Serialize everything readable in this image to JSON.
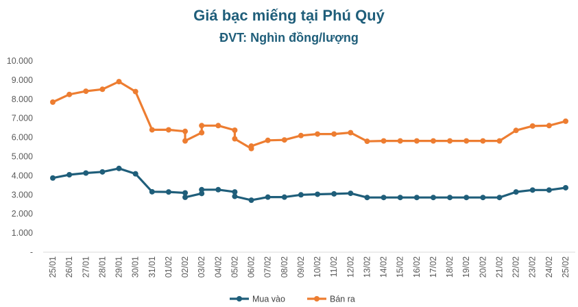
{
  "chart_data": {
    "type": "line",
    "title": "Giá bạc miếng tại Phú Quý",
    "subtitle": "ĐVT: Nghìn đồng/lượng",
    "x_labels": [
      "25/01",
      "26/01",
      "27/01",
      "28/01",
      "29/01",
      "30/01",
      "31/01",
      "01/02",
      "02/02",
      "03/02",
      "04/02",
      "05/02",
      "06/02",
      "07/02",
      "08/02",
      "09/02",
      "10/02",
      "11/02",
      "12/02",
      "13/02",
      "14/02",
      "15/02",
      "16/02",
      "17/02",
      "18/02",
      "19/02",
      "20/02",
      "21/02",
      "22/02",
      "23/02",
      "24/02",
      "25/02"
    ],
    "y_ticks": [
      "-",
      "1.000",
      "2.000",
      "3.000",
      "4.000",
      "5.000",
      "6.000",
      "7.000",
      "8.000",
      "9.000",
      "10.000"
    ],
    "ylim": [
      0,
      10000
    ],
    "series": [
      {
        "name": "Mua vào",
        "color": "#1f5e7a",
        "points": [
          {
            "x": "25/01",
            "y": 3880
          },
          {
            "x": "26/01",
            "y": 4050
          },
          {
            "x": "27/01",
            "y": 4140
          },
          {
            "x": "28/01",
            "y": 4200
          },
          {
            "x": "29/01",
            "y": 4380
          },
          {
            "x": "30/01",
            "y": 4100
          },
          {
            "x": "31/01",
            "y": 3160
          },
          {
            "x": "01/02",
            "y": 3150
          },
          {
            "x": "02/02",
            "y": 3100
          },
          {
            "x": "02/02",
            "y": 2870
          },
          {
            "x": "03/02",
            "y": 3070
          },
          {
            "x": "03/02",
            "y": 3270
          },
          {
            "x": "04/02",
            "y": 3270
          },
          {
            "x": "05/02",
            "y": 3150
          },
          {
            "x": "05/02",
            "y": 2920
          },
          {
            "x": "06/02",
            "y": 2720
          },
          {
            "x": "07/02",
            "y": 2880
          },
          {
            "x": "08/02",
            "y": 2880
          },
          {
            "x": "09/02",
            "y": 3000
          },
          {
            "x": "10/02",
            "y": 3030
          },
          {
            "x": "11/02",
            "y": 3050
          },
          {
            "x": "12/02",
            "y": 3080
          },
          {
            "x": "13/02",
            "y": 2860
          },
          {
            "x": "14/02",
            "y": 2860
          },
          {
            "x": "15/02",
            "y": 2860
          },
          {
            "x": "16/02",
            "y": 2860
          },
          {
            "x": "17/02",
            "y": 2860
          },
          {
            "x": "18/02",
            "y": 2860
          },
          {
            "x": "19/02",
            "y": 2860
          },
          {
            "x": "20/02",
            "y": 2860
          },
          {
            "x": "21/02",
            "y": 2860
          },
          {
            "x": "22/02",
            "y": 3150
          },
          {
            "x": "23/02",
            "y": 3250
          },
          {
            "x": "24/02",
            "y": 3250
          },
          {
            "x": "25/02",
            "y": 3370
          }
        ]
      },
      {
        "name": "Bán ra",
        "color": "#ed7d31",
        "points": [
          {
            "x": "25/01",
            "y": 7850
          },
          {
            "x": "26/01",
            "y": 8250
          },
          {
            "x": "27/01",
            "y": 8420
          },
          {
            "x": "28/01",
            "y": 8520
          },
          {
            "x": "29/01",
            "y": 8920
          },
          {
            "x": "30/01",
            "y": 8400
          },
          {
            "x": "31/01",
            "y": 6400
          },
          {
            "x": "01/02",
            "y": 6400
          },
          {
            "x": "02/02",
            "y": 6320
          },
          {
            "x": "02/02",
            "y": 5820
          },
          {
            "x": "03/02",
            "y": 6250
          },
          {
            "x": "03/02",
            "y": 6620
          },
          {
            "x": "04/02",
            "y": 6620
          },
          {
            "x": "05/02",
            "y": 6380
          },
          {
            "x": "05/02",
            "y": 5930
          },
          {
            "x": "06/02",
            "y": 5420
          },
          {
            "x": "06/02",
            "y": 5550
          },
          {
            "x": "07/02",
            "y": 5850
          },
          {
            "x": "08/02",
            "y": 5870
          },
          {
            "x": "09/02",
            "y": 6100
          },
          {
            "x": "10/02",
            "y": 6180
          },
          {
            "x": "11/02",
            "y": 6180
          },
          {
            "x": "12/02",
            "y": 6250
          },
          {
            "x": "13/02",
            "y": 5800
          },
          {
            "x": "14/02",
            "y": 5820
          },
          {
            "x": "15/02",
            "y": 5820
          },
          {
            "x": "16/02",
            "y": 5820
          },
          {
            "x": "17/02",
            "y": 5820
          },
          {
            "x": "18/02",
            "y": 5820
          },
          {
            "x": "19/02",
            "y": 5820
          },
          {
            "x": "20/02",
            "y": 5820
          },
          {
            "x": "21/02",
            "y": 5820
          },
          {
            "x": "22/02",
            "y": 6370
          },
          {
            "x": "23/02",
            "y": 6600
          },
          {
            "x": "24/02",
            "y": 6620
          },
          {
            "x": "25/02",
            "y": 6850
          }
        ]
      }
    ],
    "grid": false,
    "legend": "bottom"
  }
}
